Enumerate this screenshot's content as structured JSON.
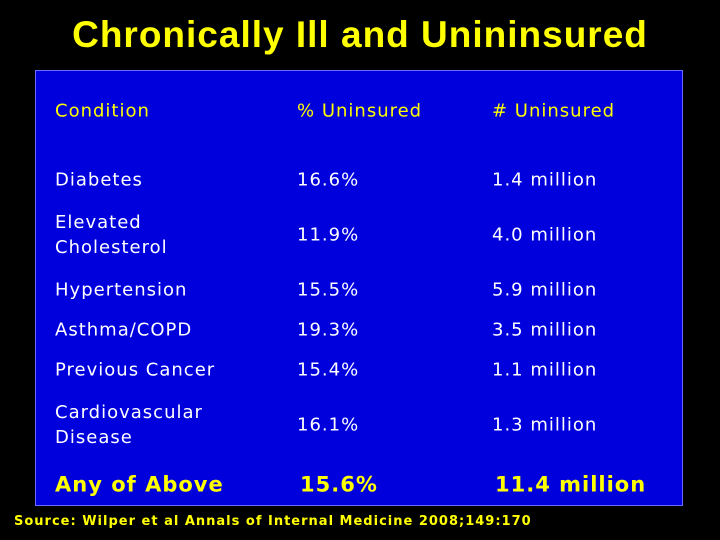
{
  "header": {
    "title": "Chronically Ill and Unininsured"
  },
  "table": {
    "columns": [
      "Condition",
      "% Uninsured",
      "# Uninsured"
    ],
    "rows": [
      [
        "Diabetes",
        "16.6%",
        "1.4 million"
      ],
      [
        "Elevated\nCholesterol",
        "11.9%",
        "4.0 million"
      ],
      [
        "Hypertension",
        "15.5%",
        "5.9 million"
      ],
      [
        "Asthma/COPD",
        "19.3%",
        "3.5 million"
      ],
      [
        "Previous Cancer",
        "15.4%",
        "1.1 million"
      ],
      [
        "Cardiovascular\nDisease",
        "16.1%",
        "1.3 million"
      ],
      [
        "Any of Above",
        "15.6%",
        "11.4 million"
      ]
    ]
  },
  "footer": {
    "source": "Source: Wilper et al Annals of Internal Medicine 2008;149:170"
  }
}
